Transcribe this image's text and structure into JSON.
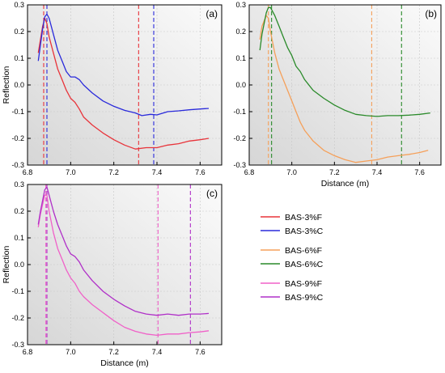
{
  "panels": [
    {
      "label": "(a)",
      "ylabel": "Reflection",
      "xlabel": "",
      "show_x_title": false,
      "chart_data": {
        "type": "line",
        "xlim": [
          6.8,
          7.7
        ],
        "ylim": [
          -0.3,
          0.3
        ],
        "x_ticks": [
          6.8,
          7.0,
          7.2,
          7.4,
          7.6
        ],
        "y_ticks": [
          -0.3,
          -0.2,
          -0.1,
          0.0,
          0.1,
          0.2,
          0.3
        ],
        "x_tick_labels": [
          "6.8",
          "7.0",
          "7.2",
          "7.4",
          "7.6"
        ],
        "y_tick_labels": [
          "-0.3",
          "-0.2",
          "-0.1",
          "0.0",
          "0.1",
          "0.2",
          "0.3"
        ],
        "grid": true,
        "series": [
          {
            "name": "BAS-3%F",
            "color": "#e8333a",
            "points": [
              [
                6.85,
                0.12
              ],
              [
                6.86,
                0.17
              ],
              [
                6.87,
                0.22
              ],
              [
                6.88,
                0.25
              ],
              [
                6.89,
                0.23
              ],
              [
                6.9,
                0.18
              ],
              [
                6.92,
                0.12
              ],
              [
                6.94,
                0.06
              ],
              [
                6.96,
                0.02
              ],
              [
                6.98,
                -0.02
              ],
              [
                7.0,
                -0.05
              ],
              [
                7.02,
                -0.065
              ],
              [
                7.04,
                -0.09
              ],
              [
                7.06,
                -0.12
              ],
              [
                7.1,
                -0.15
              ],
              [
                7.15,
                -0.18
              ],
              [
                7.2,
                -0.205
              ],
              [
                7.25,
                -0.225
              ],
              [
                7.3,
                -0.24
              ],
              [
                7.35,
                -0.235
              ],
              [
                7.4,
                -0.235
              ],
              [
                7.45,
                -0.225
              ],
              [
                7.5,
                -0.22
              ],
              [
                7.55,
                -0.21
              ],
              [
                7.6,
                -0.205
              ],
              [
                7.64,
                -0.2
              ]
            ]
          },
          {
            "name": "BAS-3%C",
            "color": "#2a2adb",
            "points": [
              [
                6.85,
                0.09
              ],
              [
                6.86,
                0.15
              ],
              [
                6.87,
                0.21
              ],
              [
                6.88,
                0.255
              ],
              [
                6.89,
                0.265
              ],
              [
                6.9,
                0.25
              ],
              [
                6.92,
                0.19
              ],
              [
                6.94,
                0.13
              ],
              [
                6.96,
                0.09
              ],
              [
                6.98,
                0.05
              ],
              [
                7.0,
                0.03
              ],
              [
                7.02,
                0.03
              ],
              [
                7.04,
                0.02
              ],
              [
                7.06,
                0.0
              ],
              [
                7.1,
                -0.03
              ],
              [
                7.15,
                -0.06
              ],
              [
                7.2,
                -0.08
              ],
              [
                7.25,
                -0.095
              ],
              [
                7.3,
                -0.105
              ],
              [
                7.33,
                -0.115
              ],
              [
                7.37,
                -0.11
              ],
              [
                7.4,
                -0.112
              ],
              [
                7.45,
                -0.1
              ],
              [
                7.5,
                -0.097
              ],
              [
                7.55,
                -0.093
              ],
              [
                7.6,
                -0.09
              ],
              [
                7.64,
                -0.088
              ]
            ]
          }
        ],
        "vlines": [
          {
            "x": 6.875,
            "color": "#e8333a"
          },
          {
            "x": 6.89,
            "color": "#2a2adb"
          },
          {
            "x": 7.315,
            "color": "#e8333a"
          },
          {
            "x": 7.385,
            "color": "#2a2adb"
          }
        ]
      }
    },
    {
      "label": "(b)",
      "ylabel": "",
      "xlabel": "Distance (m)",
      "show_x_title": true,
      "chart_data": {
        "type": "line",
        "xlim": [
          6.8,
          7.7
        ],
        "ylim": [
          -0.3,
          0.3
        ],
        "x_ticks": [
          6.8,
          7.0,
          7.2,
          7.4,
          7.6
        ],
        "y_ticks": [
          -0.3,
          -0.2,
          -0.1,
          0.0,
          0.1,
          0.2,
          0.3
        ],
        "x_tick_labels": [
          "6.8",
          "7.0",
          "7.2",
          "7.4",
          "7.6"
        ],
        "y_tick_labels": [
          "-0.3",
          "-0.2",
          "-0.1",
          "0.0",
          "0.1",
          "0.2",
          "0.3"
        ],
        "grid": true,
        "series": [
          {
            "name": "BAS-6%F",
            "color": "#f5a05a",
            "points": [
              [
                6.85,
                0.17
              ],
              [
                6.86,
                0.22
              ],
              [
                6.88,
                0.26
              ],
              [
                6.89,
                0.25
              ],
              [
                6.9,
                0.2
              ],
              [
                6.92,
                0.12
              ],
              [
                6.94,
                0.06
              ],
              [
                6.96,
                0.02
              ],
              [
                6.98,
                -0.02
              ],
              [
                7.0,
                -0.06
              ],
              [
                7.02,
                -0.1
              ],
              [
                7.04,
                -0.14
              ],
              [
                7.06,
                -0.17
              ],
              [
                7.1,
                -0.21
              ],
              [
                7.15,
                -0.245
              ],
              [
                7.2,
                -0.265
              ],
              [
                7.25,
                -0.28
              ],
              [
                7.3,
                -0.29
              ],
              [
                7.35,
                -0.285
              ],
              [
                7.4,
                -0.28
              ],
              [
                7.45,
                -0.27
              ],
              [
                7.5,
                -0.265
              ],
              [
                7.55,
                -0.26
              ],
              [
                7.6,
                -0.253
              ],
              [
                7.64,
                -0.245
              ]
            ]
          },
          {
            "name": "BAS-6%C",
            "color": "#2a8a2a",
            "points": [
              [
                6.85,
                0.13
              ],
              [
                6.86,
                0.19
              ],
              [
                6.88,
                0.27
              ],
              [
                6.89,
                0.29
              ],
              [
                6.9,
                0.29
              ],
              [
                6.92,
                0.26
              ],
              [
                6.94,
                0.22
              ],
              [
                6.96,
                0.18
              ],
              [
                6.98,
                0.14
              ],
              [
                7.0,
                0.11
              ],
              [
                7.02,
                0.07
              ],
              [
                7.04,
                0.05
              ],
              [
                7.06,
                0.02
              ],
              [
                7.1,
                -0.02
              ],
              [
                7.15,
                -0.05
              ],
              [
                7.2,
                -0.075
              ],
              [
                7.25,
                -0.095
              ],
              [
                7.3,
                -0.11
              ],
              [
                7.35,
                -0.115
              ],
              [
                7.4,
                -0.118
              ],
              [
                7.45,
                -0.115
              ],
              [
                7.5,
                -0.115
              ],
              [
                7.55,
                -0.113
              ],
              [
                7.6,
                -0.11
              ],
              [
                7.65,
                -0.105
              ]
            ]
          }
        ],
        "vlines": [
          {
            "x": 6.89,
            "color": "#f5a05a"
          },
          {
            "x": 6.905,
            "color": "#2a8a2a"
          },
          {
            "x": 7.375,
            "color": "#f5a05a"
          },
          {
            "x": 7.515,
            "color": "#2a8a2a"
          }
        ]
      }
    },
    {
      "label": "(c)",
      "ylabel": "Reflection",
      "xlabel": "Distance (m)",
      "show_x_title": true,
      "chart_data": {
        "type": "line",
        "xlim": [
          6.8,
          7.7
        ],
        "ylim": [
          -0.3,
          0.3
        ],
        "x_ticks": [
          6.8,
          7.0,
          7.2,
          7.4,
          7.6
        ],
        "y_ticks": [
          -0.3,
          -0.2,
          -0.1,
          0.0,
          0.1,
          0.2,
          0.3
        ],
        "x_tick_labels": [
          "6.8",
          "7.0",
          "7.2",
          "7.4",
          "7.6"
        ],
        "y_tick_labels": [
          "-0.3",
          "-0.2",
          "-0.1",
          "0.0",
          "0.1",
          "0.2",
          "0.3"
        ],
        "grid": true,
        "series": [
          {
            "name": "BAS-9%F",
            "color": "#f060c8",
            "points": [
              [
                6.85,
                0.14
              ],
              [
                6.86,
                0.19
              ],
              [
                6.88,
                0.26
              ],
              [
                6.89,
                0.26
              ],
              [
                6.9,
                0.2
              ],
              [
                6.92,
                0.12
              ],
              [
                6.94,
                0.06
              ],
              [
                6.96,
                0.02
              ],
              [
                6.98,
                -0.02
              ],
              [
                7.0,
                -0.05
              ],
              [
                7.02,
                -0.07
              ],
              [
                7.04,
                -0.1
              ],
              [
                7.06,
                -0.12
              ],
              [
                7.1,
                -0.15
              ],
              [
                7.15,
                -0.18
              ],
              [
                7.2,
                -0.21
              ],
              [
                7.25,
                -0.235
              ],
              [
                7.3,
                -0.25
              ],
              [
                7.35,
                -0.26
              ],
              [
                7.4,
                -0.265
              ],
              [
                7.45,
                -0.26
              ],
              [
                7.5,
                -0.26
              ],
              [
                7.55,
                -0.255
              ],
              [
                7.6,
                -0.252
              ],
              [
                7.64,
                -0.248
              ]
            ]
          },
          {
            "name": "BAS-9%C",
            "color": "#b030c8",
            "points": [
              [
                6.85,
                0.15
              ],
              [
                6.86,
                0.2
              ],
              [
                6.88,
                0.28
              ],
              [
                6.89,
                0.29
              ],
              [
                6.9,
                0.26
              ],
              [
                6.92,
                0.2
              ],
              [
                6.94,
                0.15
              ],
              [
                6.96,
                0.11
              ],
              [
                6.98,
                0.07
              ],
              [
                7.0,
                0.04
              ],
              [
                7.02,
                0.03
              ],
              [
                7.04,
                0.01
              ],
              [
                7.06,
                -0.02
              ],
              [
                7.1,
                -0.06
              ],
              [
                7.15,
                -0.1
              ],
              [
                7.2,
                -0.13
              ],
              [
                7.25,
                -0.155
              ],
              [
                7.3,
                -0.175
              ],
              [
                7.35,
                -0.185
              ],
              [
                7.4,
                -0.19
              ],
              [
                7.45,
                -0.185
              ],
              [
                7.5,
                -0.19
              ],
              [
                7.55,
                -0.185
              ],
              [
                7.6,
                -0.185
              ],
              [
                7.64,
                -0.183
              ]
            ]
          }
        ],
        "vlines": [
          {
            "x": 6.885,
            "color": "#f060c8"
          },
          {
            "x": 6.89,
            "color": "#b030c8"
          },
          {
            "x": 7.405,
            "color": "#f060c8"
          },
          {
            "x": 7.555,
            "color": "#b030c8"
          }
        ]
      }
    }
  ],
  "legend": {
    "groups": [
      [
        {
          "name": "BAS-3%F",
          "color": "#e8333a"
        },
        {
          "name": "BAS-3%C",
          "color": "#2a2adb"
        }
      ],
      [
        {
          "name": "BAS-6%F",
          "color": "#f5a05a"
        },
        {
          "name": "BAS-6%C",
          "color": "#2a8a2a"
        }
      ],
      [
        {
          "name": "BAS-9%F",
          "color": "#f060c8"
        },
        {
          "name": "BAS-9%C",
          "color": "#b030c8"
        }
      ]
    ]
  }
}
